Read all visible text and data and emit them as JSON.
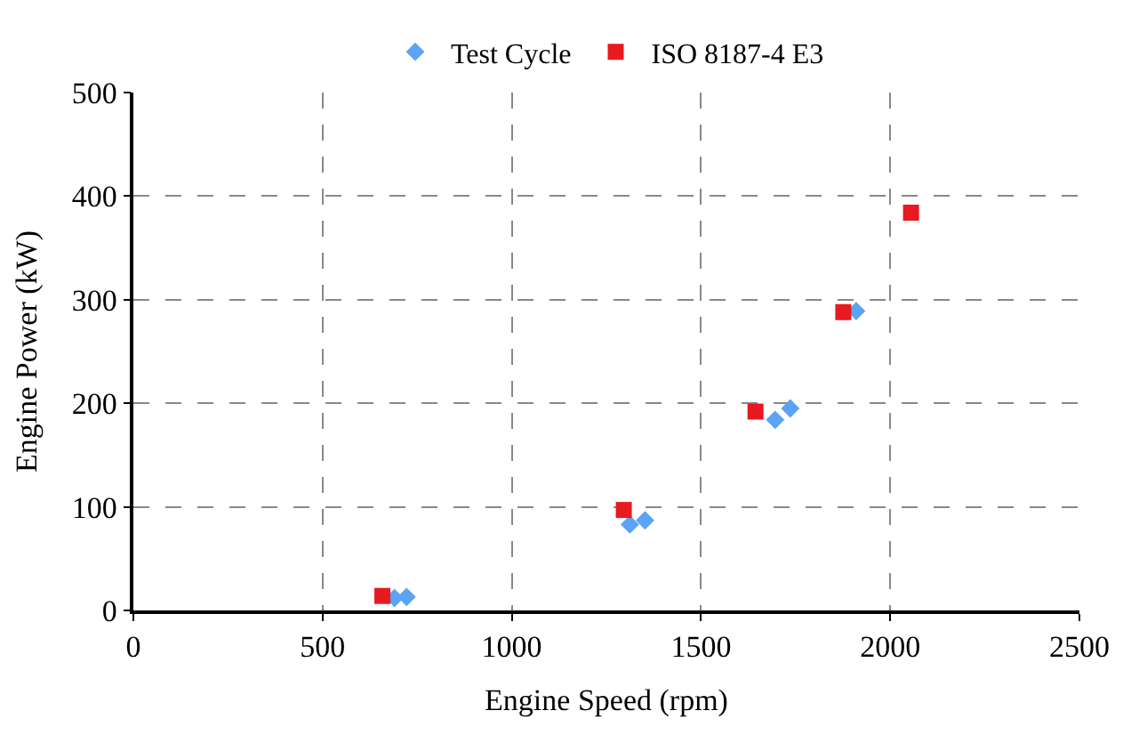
{
  "chart_data": {
    "type": "scatter",
    "xlabel": "Engine Speed (rpm)",
    "ylabel": "Engine Power (kW)",
    "xlim": [
      0,
      2500
    ],
    "xticks": [
      0,
      500,
      1000,
      1500,
      2000,
      2500
    ],
    "ylim": [
      0,
      500
    ],
    "yticks": [
      0,
      100,
      200,
      300,
      400,
      500
    ],
    "grid": true,
    "legend": "top",
    "series": [
      {
        "name": "Test Cycle",
        "color": "#5ba3f5",
        "marker": "diamond",
        "x": [
          690,
          722,
          1312,
          1352,
          1696,
          1736,
          1910
        ],
        "values": [
          12,
          13,
          83,
          87,
          184,
          195,
          289
        ]
      },
      {
        "name": "ISO 8187-4 E3",
        "color": "#e8191f",
        "marker": "square",
        "x": [
          658,
          1296,
          1644,
          1876,
          2055
        ],
        "values": [
          14,
          97,
          192,
          288,
          384
        ]
      }
    ]
  }
}
